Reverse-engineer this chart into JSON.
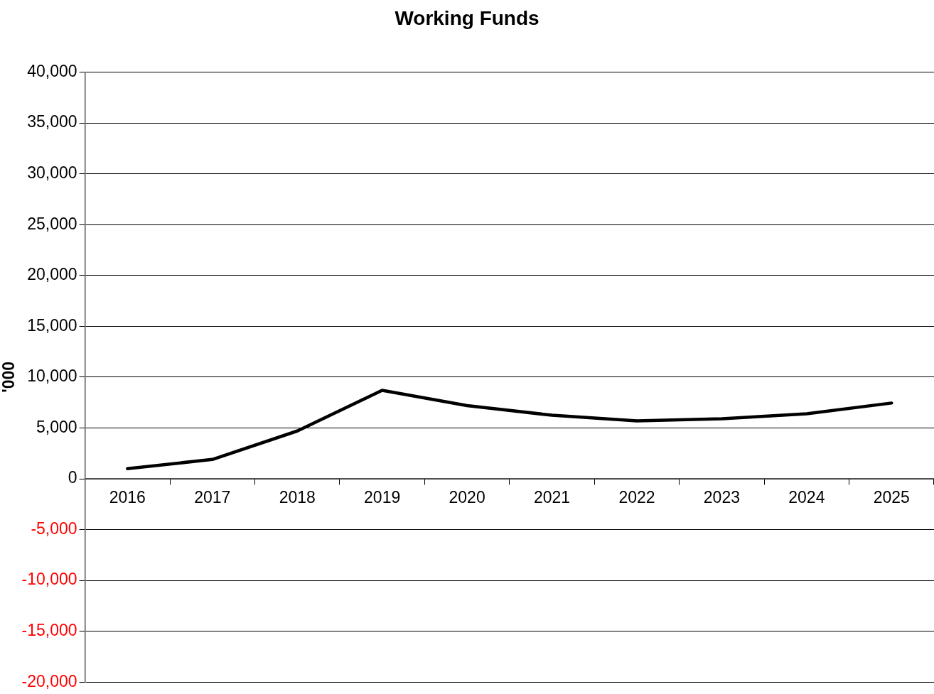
{
  "chart_data": {
    "type": "line",
    "title": "Working Funds",
    "ylabel": "'000",
    "categories": [
      "2016",
      "2017",
      "2018",
      "2019",
      "2020",
      "2021",
      "2022",
      "2023",
      "2024",
      "2025"
    ],
    "series": [
      {
        "color": "#000000",
        "values": [
          1000,
          1900,
          4700,
          8700,
          7200,
          6250,
          5700,
          5900,
          6400,
          7450
        ]
      }
    ],
    "ylim": [
      -20000,
      40000
    ],
    "yticks": [
      {
        "value": -20000,
        "label": "-20,000"
      },
      {
        "value": -15000,
        "label": "-15,000"
      },
      {
        "value": -10000,
        "label": "-10,000"
      },
      {
        "value": -5000,
        "label": "-5,000"
      },
      0,
      {
        "value": 5000,
        "label": "5,000"
      },
      {
        "value": 10000,
        "label": "10,000"
      },
      {
        "value": 15000,
        "label": "15,000"
      },
      {
        "value": 20000,
        "label": "20,000"
      },
      {
        "value": 25000,
        "label": "25,000"
      },
      {
        "value": 30000,
        "label": "30,000"
      },
      {
        "value": 35000,
        "label": "35,000"
      },
      {
        "value": 40000,
        "label": "40,000"
      }
    ],
    "grid": "y",
    "legend": false,
    "marker": "none",
    "line_style": "solid"
  }
}
